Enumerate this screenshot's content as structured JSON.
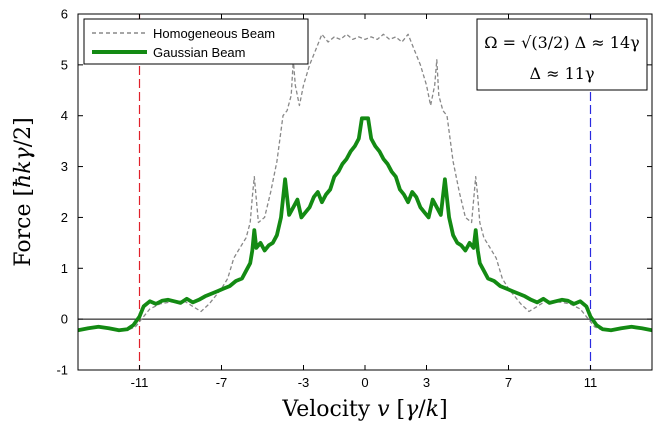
{
  "chart_data": {
    "type": "line",
    "title": "",
    "xlabel": "Velocity v [γ/k]",
    "ylabel": "Force [ħkγ/2]",
    "xlim": [
      -14,
      14
    ],
    "ylim": [
      -1,
      6
    ],
    "xticks": [
      -11,
      -7,
      -3,
      0,
      3,
      7,
      11
    ],
    "xtick_labels": [
      "-11",
      "-7",
      "-3",
      "0",
      "3",
      "7",
      "11"
    ],
    "yticks": [
      -1,
      0,
      1,
      2,
      3,
      4,
      5,
      6
    ],
    "ytick_labels": [
      "-1",
      "0",
      "1",
      "2",
      "3",
      "4",
      "5",
      "6"
    ],
    "grid": false,
    "legend_position": "top-left",
    "annotation": {
      "line1": "Ω = √(3/2) Δ ≈ 14γ",
      "line2": "Δ ≈ 11γ"
    },
    "reference_lines": [
      {
        "type": "horizontal",
        "y": 0,
        "color": "#000000"
      },
      {
        "type": "vertical",
        "x": -11,
        "color": "#e0202a",
        "style": "dashed"
      },
      {
        "type": "vertical",
        "x": 11,
        "color": "#2a2ae0",
        "style": "dashed"
      }
    ],
    "series": [
      {
        "name": "Homogeneous Beam",
        "color": "#888888",
        "style": "dashed",
        "x": [
          0,
          0.3,
          0.6,
          0.9,
          1.2,
          1.5,
          1.8,
          2.1,
          2.4,
          2.7,
          3.0,
          3.2,
          3.4,
          3.5,
          3.6,
          3.8,
          4.0,
          4.3,
          4.6,
          4.9,
          5.2,
          5.4,
          5.5,
          5.6,
          5.8,
          6.1,
          6.4,
          6.7,
          7.0,
          7.3,
          7.6,
          8.0,
          8.4,
          8.8,
          9.2,
          9.6,
          10.0,
          10.5,
          10.8,
          11.0,
          11.2,
          11.6,
          12.2,
          12.8,
          13.4,
          14.0
        ],
        "values": [
          5.5,
          5.55,
          5.5,
          5.6,
          5.5,
          5.55,
          5.45,
          5.6,
          5.3,
          5.0,
          4.6,
          4.2,
          4.6,
          5.1,
          4.4,
          4.1,
          4.0,
          3.1,
          2.5,
          2.0,
          1.9,
          2.8,
          2.4,
          1.9,
          1.6,
          1.4,
          1.2,
          0.8,
          0.6,
          0.45,
          0.3,
          0.15,
          0.25,
          0.35,
          0.35,
          0.33,
          0.3,
          0.2,
          0.05,
          -0.05,
          -0.15,
          -0.22,
          -0.2,
          -0.15,
          -0.18,
          -0.22
        ]
      },
      {
        "name": "Gaussian Beam",
        "color": "#138a13",
        "style": "solid",
        "x": [
          0,
          0.15,
          0.3,
          0.5,
          0.7,
          0.9,
          1.1,
          1.3,
          1.5,
          1.7,
          1.9,
          2.1,
          2.3,
          2.5,
          2.7,
          2.9,
          3.1,
          3.3,
          3.5,
          3.7,
          3.9,
          4.1,
          4.3,
          4.5,
          4.7,
          4.9,
          5.1,
          5.3,
          5.4,
          5.5,
          5.6,
          5.8,
          6.0,
          6.3,
          6.6,
          6.9,
          7.2,
          7.5,
          7.8,
          8.1,
          8.4,
          8.7,
          9.0,
          9.3,
          9.6,
          9.9,
          10.2,
          10.5,
          10.8,
          11.0,
          11.3,
          11.6,
          12.0,
          12.5,
          13.0,
          13.5,
          14.0
        ],
        "values": [
          3.95,
          3.95,
          3.55,
          3.4,
          3.3,
          3.15,
          3.05,
          2.9,
          2.8,
          2.55,
          2.45,
          2.3,
          2.5,
          2.4,
          2.2,
          2.1,
          2.0,
          2.35,
          2.2,
          2.05,
          2.75,
          2.0,
          1.65,
          1.5,
          1.45,
          1.35,
          1.5,
          1.4,
          1.75,
          1.35,
          1.1,
          0.95,
          0.8,
          0.75,
          0.65,
          0.6,
          0.55,
          0.5,
          0.45,
          0.38,
          0.33,
          0.4,
          0.32,
          0.35,
          0.38,
          0.36,
          0.3,
          0.35,
          0.25,
          0.05,
          -0.12,
          -0.2,
          -0.22,
          -0.18,
          -0.15,
          -0.18,
          -0.22
        ]
      }
    ]
  }
}
